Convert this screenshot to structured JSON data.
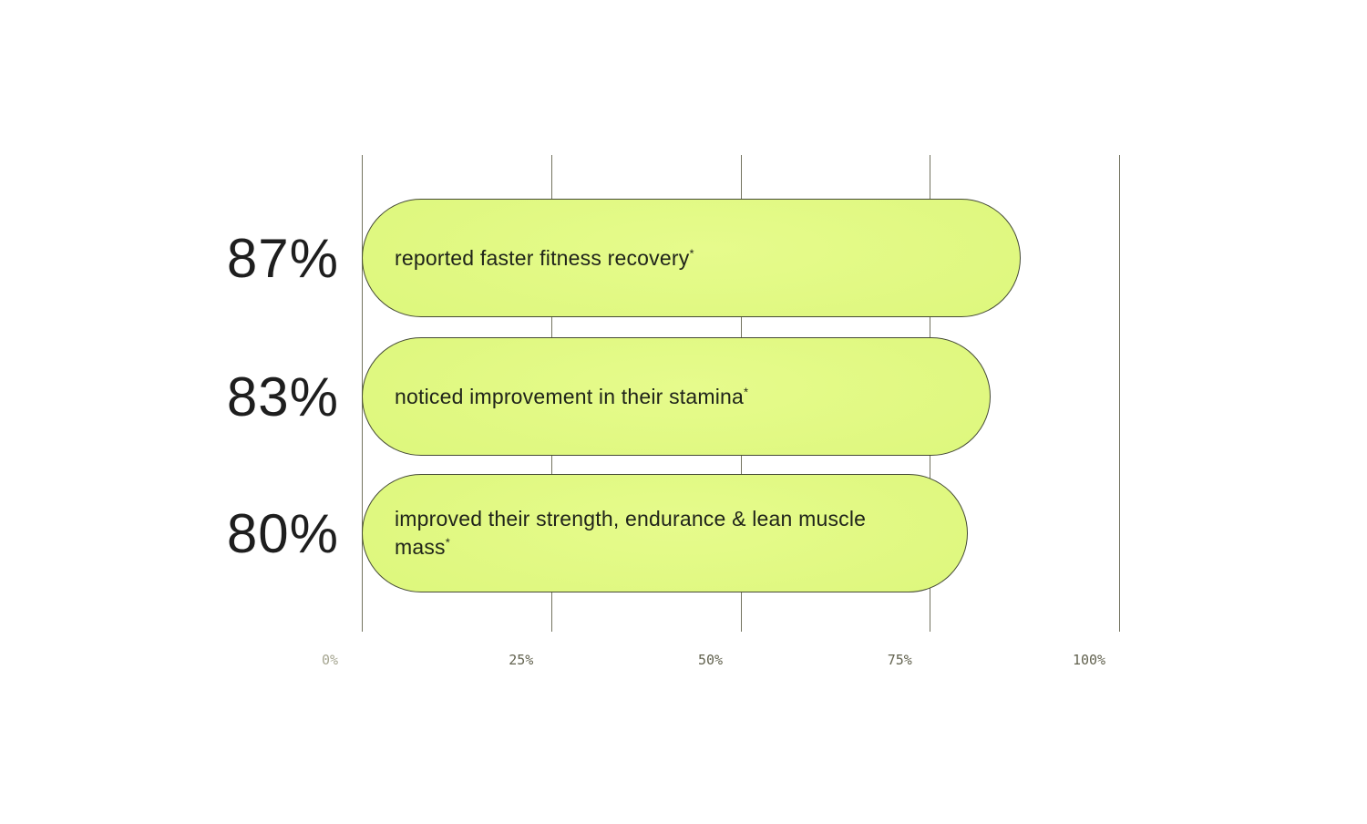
{
  "chart_data": {
    "type": "bar",
    "orientation": "horizontal",
    "title": "",
    "categories": [
      "reported faster fitness recovery",
      "noticed improvement in their stamina",
      "improved their strength, endurance & lean muscle mass"
    ],
    "values": [
      87,
      83,
      80
    ],
    "value_labels": [
      "87%",
      "83%",
      "80%"
    ],
    "footnote_mark": "*",
    "x_ticks": [
      "0%",
      "25%",
      "50%",
      "75%",
      "100%"
    ],
    "xlim": [
      0,
      100
    ],
    "grid": "vertical-gridlines",
    "legend": "none",
    "bar_color": "#ddf77c",
    "bar_border_color": "#454a36"
  },
  "bars": [
    {
      "percent": "87%",
      "label": "reported faster fitness recovery",
      "mark": "*"
    },
    {
      "percent": "83%",
      "label": "noticed improvement in their stamina",
      "mark": "*"
    },
    {
      "percent": "80%",
      "label": "improved their strength, endurance & lean muscle mass",
      "mark": "*"
    }
  ],
  "axis": {
    "ticks": [
      {
        "label": "0%"
      },
      {
        "label": "25%"
      },
      {
        "label": "50%"
      },
      {
        "label": "75%"
      },
      {
        "label": "100%"
      }
    ]
  },
  "colors": {
    "background": "#ffffff",
    "bar_fill": "#ddf77c",
    "bar_border": "#454a36",
    "gridline": "#73735f",
    "tick_text": "#62624f",
    "tick_text_faded": "#a6a691",
    "percent_text": "#1e1e1e",
    "bar_text": "#20241a"
  }
}
